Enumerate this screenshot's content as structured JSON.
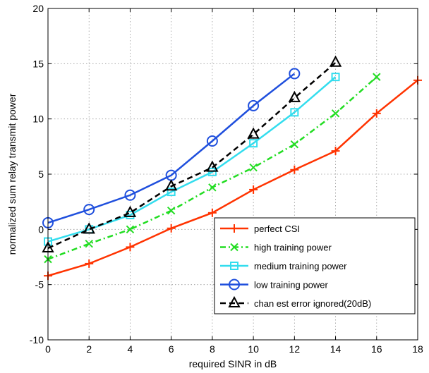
{
  "chart_data": {
    "type": "line",
    "title": "",
    "xlabel": "required SINR in dB",
    "ylabel": "normalized sum relay transmit power",
    "xlim": [
      0,
      18
    ],
    "ylim": [
      -10,
      20
    ],
    "xticks": [
      0,
      2,
      4,
      6,
      8,
      10,
      12,
      14,
      16,
      18
    ],
    "yticks": [
      -10,
      -5,
      0,
      5,
      10,
      15,
      20
    ],
    "grid": true,
    "legend_position": "bottom-right",
    "series": [
      {
        "name": "perfect CSI",
        "color": "#ff3300",
        "line_style": "solid",
        "marker": "plus",
        "x": [
          0,
          2,
          4,
          6,
          8,
          10,
          12,
          14,
          16,
          18
        ],
        "y": [
          -4.2,
          -3.1,
          -1.6,
          0.1,
          1.5,
          3.6,
          5.4,
          7.1,
          10.5,
          13.5
        ]
      },
      {
        "name": "high training power",
        "color": "#22dd22",
        "line_style": "dashdot",
        "marker": "x",
        "x": [
          0,
          2,
          4,
          6,
          8,
          10,
          12,
          14,
          16
        ],
        "y": [
          -2.7,
          -1.3,
          0.0,
          1.7,
          3.8,
          5.6,
          7.7,
          10.5,
          13.8
        ]
      },
      {
        "name": "medium training power",
        "color": "#33ddee",
        "line_style": "solid",
        "marker": "square",
        "x": [
          0,
          2,
          4,
          6,
          8,
          10,
          12,
          14
        ],
        "y": [
          -1.1,
          0.0,
          1.3,
          3.4,
          5.2,
          7.8,
          10.6,
          13.8
        ]
      },
      {
        "name": "low training power",
        "color": "#1f4fdd",
        "line_style": "solid",
        "marker": "circle",
        "x": [
          0,
          2,
          4,
          6,
          8,
          10,
          12
        ],
        "y": [
          0.6,
          1.8,
          3.1,
          4.9,
          8.0,
          11.2,
          14.1
        ]
      },
      {
        "name": "chan est error ignored(20dB)",
        "color": "#000000",
        "line_style": "dashed",
        "marker": "triangle",
        "x": [
          0,
          2,
          4,
          6,
          8,
          10,
          12,
          14
        ],
        "y": [
          -1.7,
          0.0,
          1.5,
          3.9,
          5.6,
          8.6,
          11.9,
          15.1
        ]
      }
    ]
  }
}
